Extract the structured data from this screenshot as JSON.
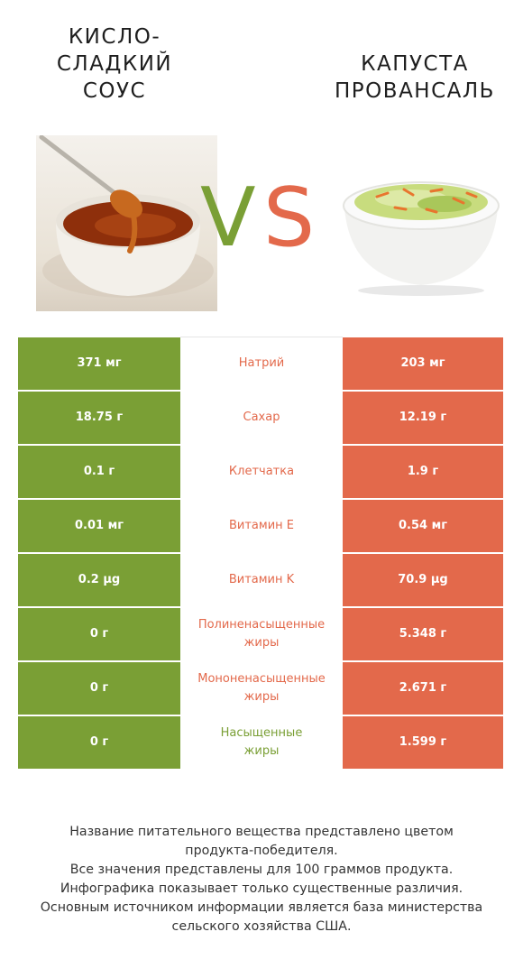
{
  "products": {
    "left": {
      "name": "КИСЛО-\nСЛАДКИЙ\nСОУС",
      "color": "#7a9f35"
    },
    "right": {
      "name": "КАПУСТА\nПРОВАНСАЛЬ",
      "color": "#e3694b"
    }
  },
  "vs": {
    "v": "V",
    "s": "S"
  },
  "rows": [
    {
      "left": "371 мг",
      "nutrient": "Натрий",
      "right": "203 мг",
      "winner": "right"
    },
    {
      "left": "18.75 г",
      "nutrient": "Сахар",
      "right": "12.19 г",
      "winner": "right"
    },
    {
      "left": "0.1 г",
      "nutrient": "Клетчатка",
      "right": "1.9 г",
      "winner": "right"
    },
    {
      "left": "0.01 мг",
      "nutrient": "Витамин E",
      "right": "0.54 мг",
      "winner": "right"
    },
    {
      "left": "0.2 µg",
      "nutrient": "Витамин K",
      "right": "70.9 µg",
      "winner": "right"
    },
    {
      "left": "0 г",
      "nutrient": "Полиненасыщенные\nжиры",
      "right": "5.348 г",
      "winner": "right"
    },
    {
      "left": "0 г",
      "nutrient": "Мононенасыщенные\nжиры",
      "right": "2.671 г",
      "winner": "right"
    },
    {
      "left": "0 г",
      "nutrient": "Насыщенные\nжиры",
      "right": "1.599 г",
      "winner": "left"
    }
  ],
  "footer": [
    "Название питательного вещества представлено цветом",
    "продукта-победителя.",
    "Все значения представлены для 100 граммов продукта.",
    "Инфографика показывает только существенные различия.",
    "Основным источником информации является база министерства",
    "сельского хозяйства США."
  ]
}
